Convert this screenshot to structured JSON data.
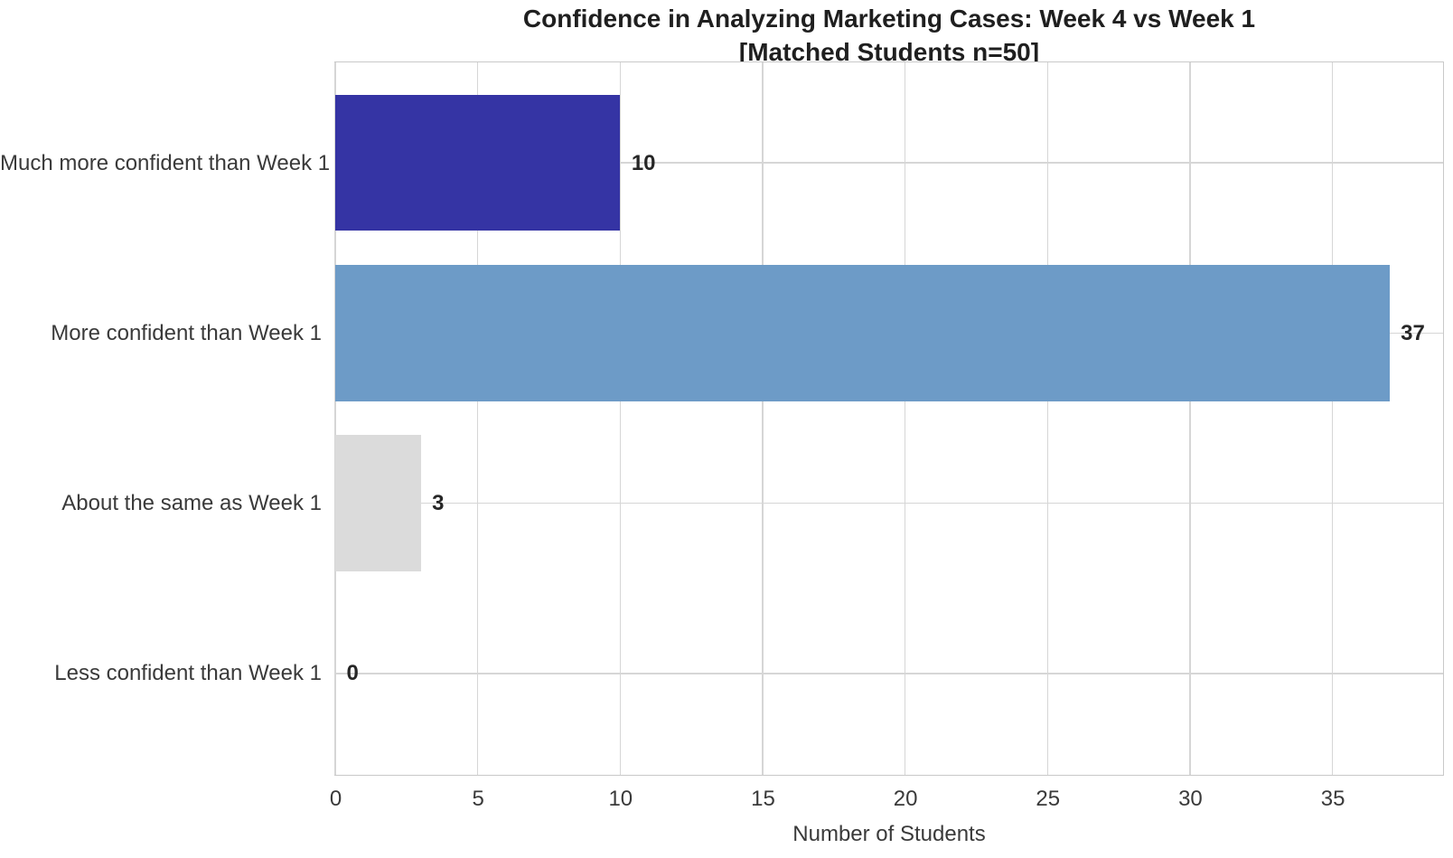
{
  "chart_data": {
    "type": "bar",
    "orientation": "horizontal",
    "title_line1": "Confidence in Analyzing Marketing Cases: Week 4 vs Week 1",
    "title_line2": "[Matched Students n=50]",
    "categories": [
      "Much more confident than Week 1",
      "More confident than Week 1",
      "About the same as Week 1",
      "Less confident than Week 1"
    ],
    "values": [
      10,
      37,
      3,
      0
    ],
    "value_labels": [
      "10",
      "37",
      "3",
      "0"
    ],
    "bar_colors": [
      "#3534A4",
      "#6D9BC7",
      "#DBDBDB",
      "#DBDBDB"
    ],
    "xlabel": "Number of Students",
    "ylabel": "",
    "xticks": [
      0,
      5,
      10,
      15,
      20,
      25,
      30,
      35
    ],
    "xlim": [
      0,
      38.85
    ],
    "bar_width_fraction": 0.8,
    "grid": true,
    "legend_position": "none",
    "styles": {
      "grid_color": "#D6D6D6",
      "spine_color": "#C9C9C9",
      "title_color": "#1F1F1F",
      "tick_label_color": "#3A3A3A",
      "value_label_color": "#262626",
      "background": "#FFFFFF"
    }
  }
}
